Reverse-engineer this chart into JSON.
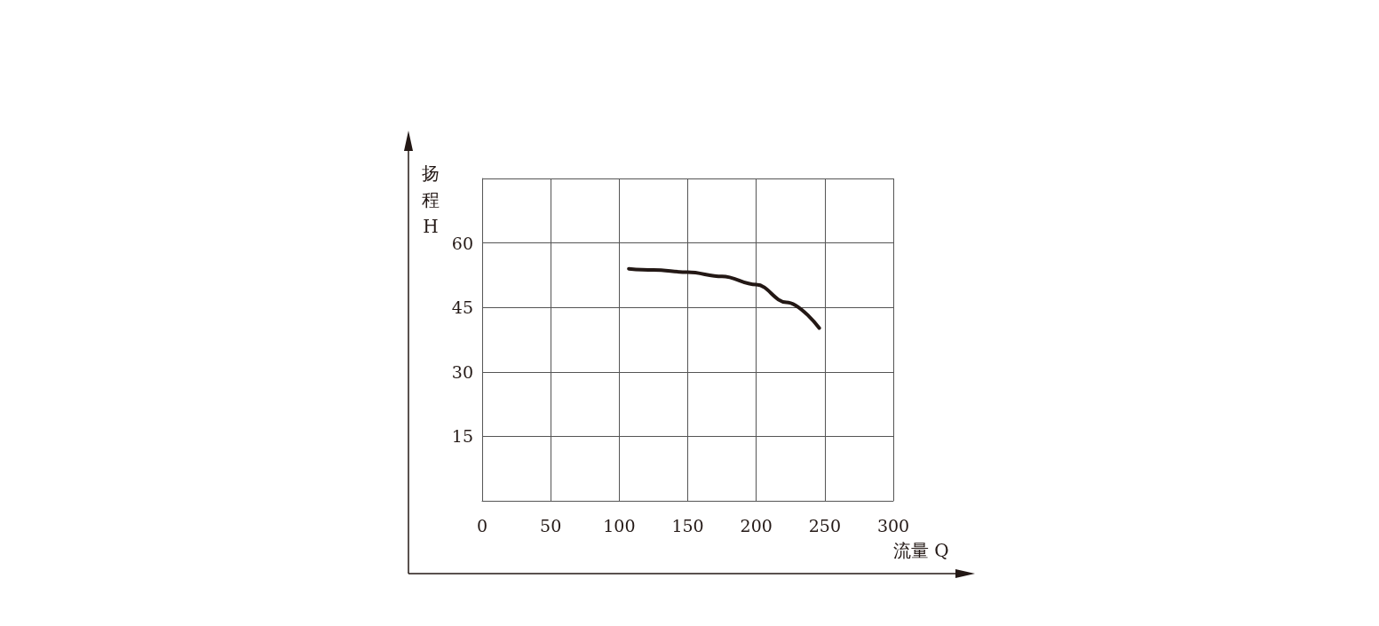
{
  "chart_data": {
    "type": "line",
    "xlabel": "流量 Q",
    "ylabel": "扬程H",
    "x": [
      107,
      125,
      150,
      175,
      200,
      222,
      246
    ],
    "series": [
      {
        "color": "#231815",
        "values": [
          54,
          53.7,
          53.2,
          52.2,
          50.3,
          46.2,
          40.2
        ]
      }
    ],
    "xlim": [
      0,
      300
    ],
    "xticks": [
      0,
      50,
      100,
      150,
      200,
      250,
      300
    ],
    "ylim": [
      0,
      75
    ],
    "yticks": [
      {
        "value": 0,
        "label": null
      },
      15,
      30,
      45,
      60,
      {
        "value": 75,
        "label": null
      }
    ],
    "grid": true,
    "marker": "none",
    "line_style": "solid"
  }
}
